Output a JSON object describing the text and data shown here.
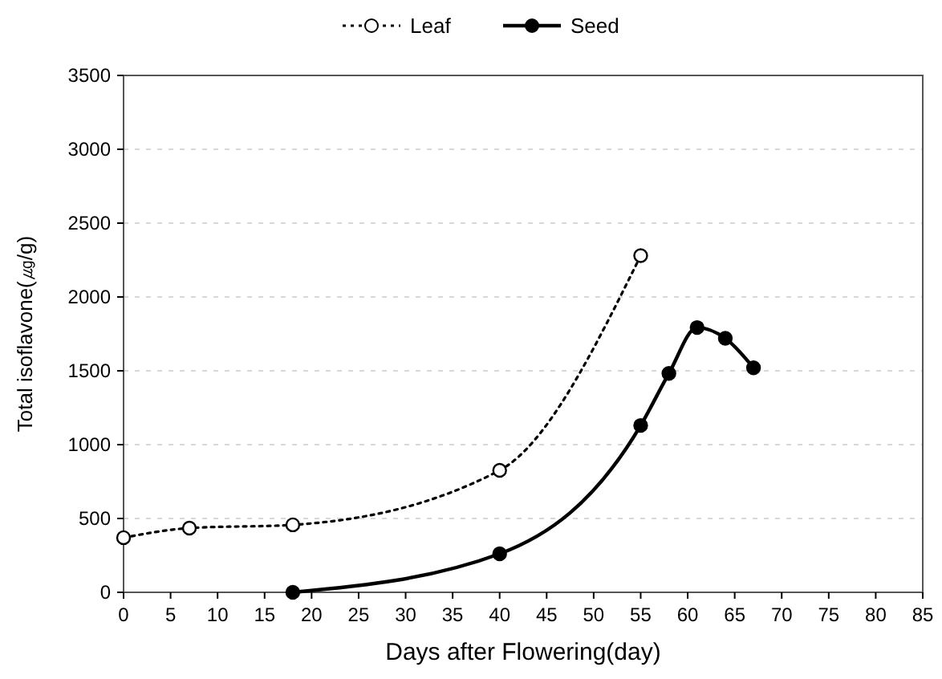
{
  "chart_data": {
    "type": "line",
    "xlabel": "Days after Flowering(day)",
    "ylabel": "Total isoflavone(㎍/g)",
    "xlim": [
      0,
      85
    ],
    "xticks": [
      0,
      5,
      10,
      15,
      20,
      25,
      30,
      35,
      40,
      45,
      50,
      55,
      60,
      65,
      70,
      75,
      80,
      85
    ],
    "ylim": [
      0,
      3500
    ],
    "yticks": [
      0,
      500,
      1000,
      1500,
      2000,
      2500,
      3000,
      3500
    ],
    "grid": "y",
    "legend": "top",
    "marker": "circle",
    "series": [
      {
        "name": "Leaf",
        "color": "#000000",
        "line_style": "dotted",
        "x": [
          0,
          7,
          18,
          40,
          55
        ],
        "values": [
          370,
          435,
          457,
          826,
          2280
        ]
      },
      {
        "name": "Seed",
        "color": "#000000",
        "line_style": "solid",
        "x": [
          18,
          40,
          55,
          58,
          61,
          64,
          67
        ],
        "values": [
          0,
          261,
          1130,
          1482,
          1793,
          1720,
          1520
        ]
      }
    ]
  }
}
